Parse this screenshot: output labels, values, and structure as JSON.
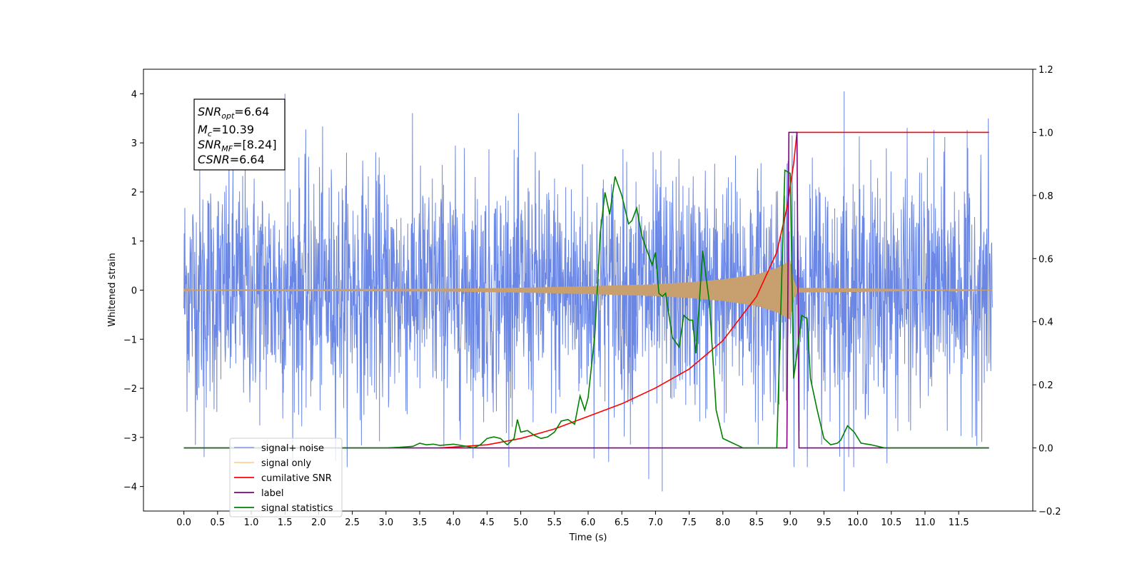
{
  "chart_data": {
    "type": "line",
    "title": "",
    "xlabel": "Time (s)",
    "ylabel": "Whitened strain",
    "y2label": "",
    "xlim": [
      -0.6,
      12.6
    ],
    "ylim": [
      -4.5,
      4.5
    ],
    "y2lim": [
      -0.2,
      1.2
    ],
    "x_ticks": [
      "0.0",
      "0.5",
      "1.0",
      "1.5",
      "2.0",
      "2.5",
      "3.0",
      "3.5",
      "4.0",
      "4.5",
      "5.0",
      "5.5",
      "6.0",
      "6.5",
      "7.0",
      "7.5",
      "8.0",
      "8.5",
      "9.0",
      "9.5",
      "10.0",
      "10.5",
      "11.0",
      "11.5"
    ],
    "y_ticks": [
      "4",
      "3",
      "2",
      "1",
      "0",
      "−1",
      "−2",
      "−3",
      "−4"
    ],
    "y2_ticks": [
      "1.2",
      "1.0",
      "0.8",
      "0.6",
      "0.4",
      "0.2",
      "0.0",
      "−0.2"
    ],
    "grid": false,
    "legend_position": "lower-left",
    "series": [
      {
        "name": "signal+ noise",
        "color": "#6b87e6",
        "axis": "left",
        "kind": "noise",
        "x_range": [
          0,
          12
        ],
        "typical_band": [
          -1.5,
          1.5
        ],
        "peak_values": [
          [
            1.5,
            4.0
          ],
          [
            9.8,
            4.05
          ],
          [
            7.1,
            -4.1
          ],
          [
            9.8,
            -4.1
          ],
          [
            0.3,
            -3.4
          ],
          [
            6.9,
            -3.85
          ]
        ]
      },
      {
        "name": "signal only",
        "color": "#ffbf66",
        "axis": "left",
        "kind": "chirp",
        "envelope": [
          [
            0.0,
            0.01
          ],
          [
            2.0,
            0.02
          ],
          [
            4.0,
            0.03
          ],
          [
            5.0,
            0.05
          ],
          [
            6.0,
            0.08
          ],
          [
            7.0,
            0.12
          ],
          [
            7.5,
            0.16
          ],
          [
            8.0,
            0.22
          ],
          [
            8.5,
            0.32
          ],
          [
            8.8,
            0.45
          ],
          [
            9.0,
            0.6
          ],
          [
            9.05,
            0.2
          ],
          [
            9.1,
            0.05
          ],
          [
            12.0,
            0.0
          ]
        ]
      },
      {
        "name": "cumilative SNR",
        "color": "#ff0000",
        "axis": "right",
        "points": [
          [
            3.8,
            0.0
          ],
          [
            4.5,
            0.01
          ],
          [
            5.0,
            0.03
          ],
          [
            5.5,
            0.06
          ],
          [
            6.0,
            0.1
          ],
          [
            6.5,
            0.14
          ],
          [
            7.0,
            0.19
          ],
          [
            7.5,
            0.25
          ],
          [
            8.0,
            0.34
          ],
          [
            8.5,
            0.48
          ],
          [
            8.8,
            0.62
          ],
          [
            8.95,
            0.76
          ],
          [
            9.05,
            0.9
          ],
          [
            9.1,
            1.0
          ],
          [
            11.95,
            1.0
          ]
        ]
      },
      {
        "name": "label",
        "color": "#800080",
        "axis": "right",
        "points": [
          [
            0.0,
            0.0
          ],
          [
            8.95,
            0.0
          ],
          [
            8.98,
            1.0
          ],
          [
            9.1,
            1.0
          ],
          [
            9.13,
            0.0
          ],
          [
            11.95,
            0.0
          ]
        ]
      },
      {
        "name": "signal statistics",
        "color": "#008000",
        "axis": "right",
        "points": [
          [
            0.0,
            0.0
          ],
          [
            3.0,
            0.0
          ],
          [
            3.2,
            0.002
          ],
          [
            3.4,
            0.005
          ],
          [
            3.5,
            0.015
          ],
          [
            3.6,
            0.01
          ],
          [
            3.7,
            0.012
          ],
          [
            3.8,
            0.008
          ],
          [
            3.9,
            0.01
          ],
          [
            4.0,
            0.012
          ],
          [
            4.2,
            0.005
          ],
          [
            4.3,
            0.0
          ],
          [
            4.4,
            0.01
          ],
          [
            4.5,
            0.03
          ],
          [
            4.6,
            0.035
          ],
          [
            4.7,
            0.03
          ],
          [
            4.8,
            0.01
          ],
          [
            4.9,
            0.03
          ],
          [
            4.95,
            0.09
          ],
          [
            5.0,
            0.05
          ],
          [
            5.1,
            0.055
          ],
          [
            5.2,
            0.04
          ],
          [
            5.3,
            0.03
          ],
          [
            5.4,
            0.035
          ],
          [
            5.5,
            0.05
          ],
          [
            5.6,
            0.085
          ],
          [
            5.7,
            0.09
          ],
          [
            5.8,
            0.075
          ],
          [
            5.88,
            0.165
          ],
          [
            5.95,
            0.12
          ],
          [
            6.0,
            0.16
          ],
          [
            6.1,
            0.36
          ],
          [
            6.18,
            0.68
          ],
          [
            6.25,
            0.81
          ],
          [
            6.32,
            0.74
          ],
          [
            6.4,
            0.86
          ],
          [
            6.5,
            0.8
          ],
          [
            6.6,
            0.71
          ],
          [
            6.65,
            0.72
          ],
          [
            6.72,
            0.76
          ],
          [
            6.8,
            0.67
          ],
          [
            6.9,
            0.61
          ],
          [
            6.95,
            0.58
          ],
          [
            7.0,
            0.62
          ],
          [
            7.05,
            0.49
          ],
          [
            7.1,
            0.48
          ],
          [
            7.15,
            0.49
          ],
          [
            7.25,
            0.35
          ],
          [
            7.35,
            0.32
          ],
          [
            7.42,
            0.42
          ],
          [
            7.5,
            0.405
          ],
          [
            7.55,
            0.405
          ],
          [
            7.6,
            0.3
          ],
          [
            7.65,
            0.46
          ],
          [
            7.7,
            0.625
          ],
          [
            7.8,
            0.46
          ],
          [
            7.9,
            0.12
          ],
          [
            8.0,
            0.03
          ],
          [
            8.1,
            0.02
          ],
          [
            8.3,
            0.0
          ],
          [
            8.8,
            0.0
          ],
          [
            8.92,
            0.88
          ],
          [
            9.0,
            0.87
          ],
          [
            9.05,
            0.22
          ],
          [
            9.1,
            0.3
          ],
          [
            9.17,
            0.42
          ],
          [
            9.25,
            0.41
          ],
          [
            9.3,
            0.22
          ],
          [
            9.4,
            0.12
          ],
          [
            9.5,
            0.03
          ],
          [
            9.6,
            0.01
          ],
          [
            9.7,
            0.015
          ],
          [
            9.75,
            0.025
          ],
          [
            9.85,
            0.07
          ],
          [
            9.95,
            0.05
          ],
          [
            10.05,
            0.015
          ],
          [
            10.2,
            0.01
          ],
          [
            10.4,
            0.0
          ],
          [
            11.95,
            0.0
          ]
        ]
      }
    ],
    "annotation": {
      "lines": [
        {
          "name": "SNR",
          "sub": "opt",
          "value": "=6.64"
        },
        {
          "name": "M",
          "sub": "c",
          "value": "=10.39"
        },
        {
          "name": "SNR",
          "sub": "MF",
          "value": "=[8.24]"
        },
        {
          "name": "CSNR",
          "sub": "",
          "value": "=6.64"
        }
      ]
    }
  }
}
